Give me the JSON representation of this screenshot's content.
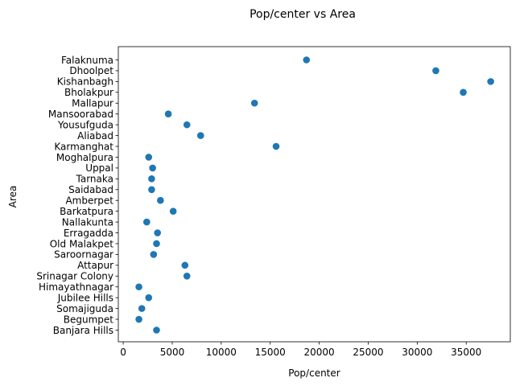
{
  "chart_data": {
    "type": "scatter",
    "title": "Pop/center vs Area",
    "xlabel": "Pop/center",
    "ylabel": "Area",
    "xlim": [
      -500,
      39500
    ],
    "x_ticks": [
      0,
      5000,
      10000,
      15000,
      20000,
      25000,
      30000,
      35000
    ],
    "x_tick_labels": [
      "0",
      "5000",
      "10000",
      "15000",
      "20000",
      "25000",
      "30000",
      "35000"
    ],
    "grid": false,
    "legend": "none",
    "marker_color": "#1f77b4",
    "categories": [
      "Banjara Hills",
      "Begumpet",
      "Somajiguda",
      "Jubilee Hills",
      "Himayathnagar",
      "Srinagar Colony",
      "Attapur",
      "Saroornagar",
      "Old Malakpet",
      "Erragadda",
      "Nallakunta",
      "Barkatpura",
      "Amberpet",
      "Saidabad",
      "Tarnaka",
      "Uppal",
      "Moghalpura",
      "Karmanghat",
      "Aliabad",
      "Yousufguda",
      "Mansoorabad",
      "Mallapur",
      "Bholakpur",
      "Kishanbagh",
      "Dhoolpet",
      "Falaknuma"
    ],
    "x": [
      3400,
      1600,
      1900,
      2600,
      1600,
      6500,
      6300,
      3100,
      3400,
      3500,
      2400,
      5100,
      3800,
      2900,
      2900,
      3000,
      2600,
      15600,
      7900,
      6500,
      4600,
      13400,
      34700,
      37500,
      31900,
      18700
    ]
  }
}
